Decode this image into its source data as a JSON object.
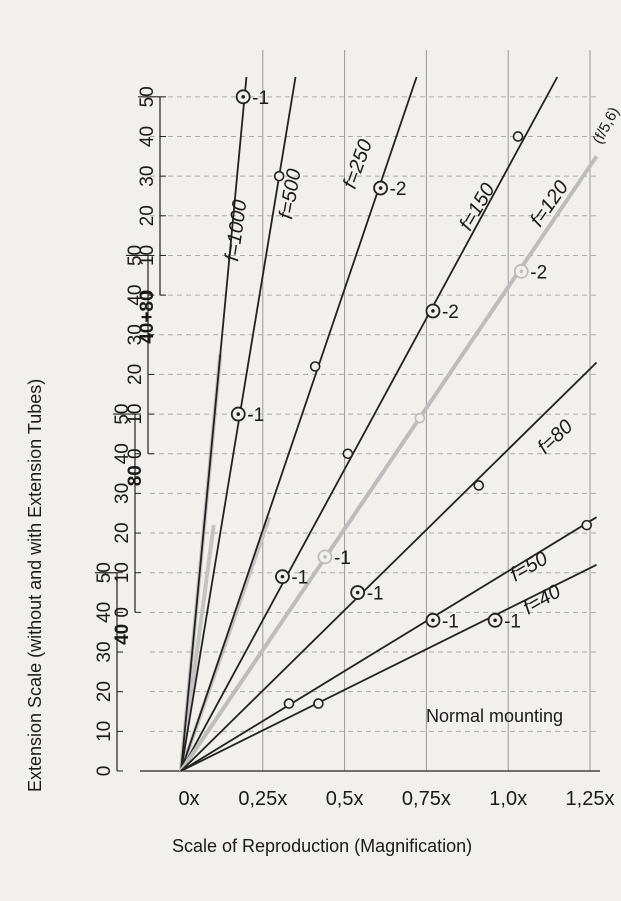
{
  "chart_data": {
    "type": "line",
    "xlabel": "Scale of Reproduction (Magnification)",
    "ylabel": "Extension Scale (without and with Extension Tubes)",
    "x_ticks": [
      "0x",
      "0,25x",
      "0,5x",
      "0,75x",
      "1,0x",
      "1,25x"
    ],
    "xlim": [
      0,
      1.25
    ],
    "ylim": [
      0,
      175
    ],
    "grid": true,
    "y_scales": [
      {
        "name": "",
        "ticks": [
          "0",
          "10",
          "20",
          "30",
          "40",
          "50"
        ],
        "range": [
          0,
          50
        ]
      },
      {
        "name": "40",
        "ticks": [
          "0",
          "10",
          "20",
          "30",
          "40",
          "50"
        ],
        "range": [
          40,
          90
        ]
      },
      {
        "name": "80",
        "ticks": [
          "0",
          "10",
          "20",
          "30",
          "40",
          "50"
        ],
        "range": [
          80,
          130
        ]
      },
      {
        "name": "40+80",
        "ticks": [
          "0",
          "10",
          "20",
          "30",
          "40",
          "50"
        ],
        "range": [
          120,
          170
        ]
      }
    ],
    "annotation": "Normal mounting",
    "series": [
      {
        "name": "f=1000",
        "color": "#222222",
        "x": [
          0,
          0.2
        ],
        "y": [
          0,
          175
        ],
        "markers": [
          {
            "x": 0.19,
            "y": 170,
            "ring": true,
            "label": "-1"
          }
        ]
      },
      {
        "name": "f=500",
        "color": "#222222",
        "x": [
          0,
          0.35
        ],
        "y": [
          0,
          175
        ],
        "markers": [
          {
            "x": 0.175,
            "y": 90,
            "ring": true,
            "label": "-1"
          },
          {
            "x": 0.3,
            "y": 150,
            "ring": false,
            "label": ""
          }
        ]
      },
      {
        "name": "f=250",
        "color": "#222222",
        "x": [
          0,
          0.72
        ],
        "y": [
          0,
          175
        ],
        "markers": [
          {
            "x": 0.31,
            "y": 49,
            "ring": true,
            "label": "-1"
          },
          {
            "x": 0.41,
            "y": 102,
            "ring": false,
            "label": ""
          },
          {
            "x": 0.61,
            "y": 147,
            "ring": true,
            "label": "-2"
          }
        ]
      },
      {
        "name": "f=150",
        "color": "#222222",
        "x": [
          0,
          1.15
        ],
        "y": [
          0,
          175
        ],
        "markers": [
          {
            "x": 0.54,
            "y": 45,
            "ring": true,
            "label": "-1"
          },
          {
            "x": 0.51,
            "y": 80,
            "ring": false,
            "label": ""
          },
          {
            "x": 0.77,
            "y": 116,
            "ring": true,
            "label": "-2"
          },
          {
            "x": 1.03,
            "y": 160,
            "ring": false,
            "label": ""
          }
        ]
      },
      {
        "name": "f=120",
        "color": "#bdbdbd",
        "x": [
          0,
          1.27
        ],
        "y": [
          0,
          155
        ],
        "markers": [
          {
            "x": 0.44,
            "y": 54,
            "ring": true,
            "label": "-1"
          },
          {
            "x": 0.73,
            "y": 89,
            "ring": false,
            "label": ""
          },
          {
            "x": 1.04,
            "y": 126,
            "ring": true,
            "label": "-2"
          }
        ]
      },
      {
        "name": "f=80",
        "color": "#222222",
        "x": [
          0,
          1.27
        ],
        "y": [
          0,
          103
        ],
        "markers": [
          {
            "x": 0.77,
            "y": 38,
            "ring": true,
            "label": "-1"
          },
          {
            "x": 0.91,
            "y": 72,
            "ring": false,
            "label": ""
          }
        ]
      },
      {
        "name": "f=50",
        "color": "#222222",
        "x": [
          0,
          1.27
        ],
        "y": [
          0,
          64
        ],
        "markers": [
          {
            "x": 0.33,
            "y": 17,
            "ring": false,
            "label": ""
          },
          {
            "x": 1.24,
            "y": 62,
            "ring": false,
            "label": ""
          }
        ]
      },
      {
        "name": "f=40",
        "color": "#222222",
        "x": [
          0,
          1.27
        ],
        "y": [
          0,
          52
        ],
        "markers": [
          {
            "x": 0.42,
            "y": 17,
            "ring": false,
            "label": ""
          },
          {
            "x": 0.96,
            "y": 38,
            "ring": true,
            "label": "-1"
          }
        ]
      }
    ],
    "grey_branches": [
      {
        "x": [
          0,
          0.12
        ],
        "y": [
          0,
          105
        ]
      },
      {
        "x": [
          0,
          0.1
        ],
        "y": [
          0,
          62
        ]
      },
      {
        "x": [
          0,
          0.27
        ],
        "y": [
          0,
          64
        ]
      }
    ]
  },
  "extra_labels": {
    "f120_aperture": "(f/5,6)"
  }
}
